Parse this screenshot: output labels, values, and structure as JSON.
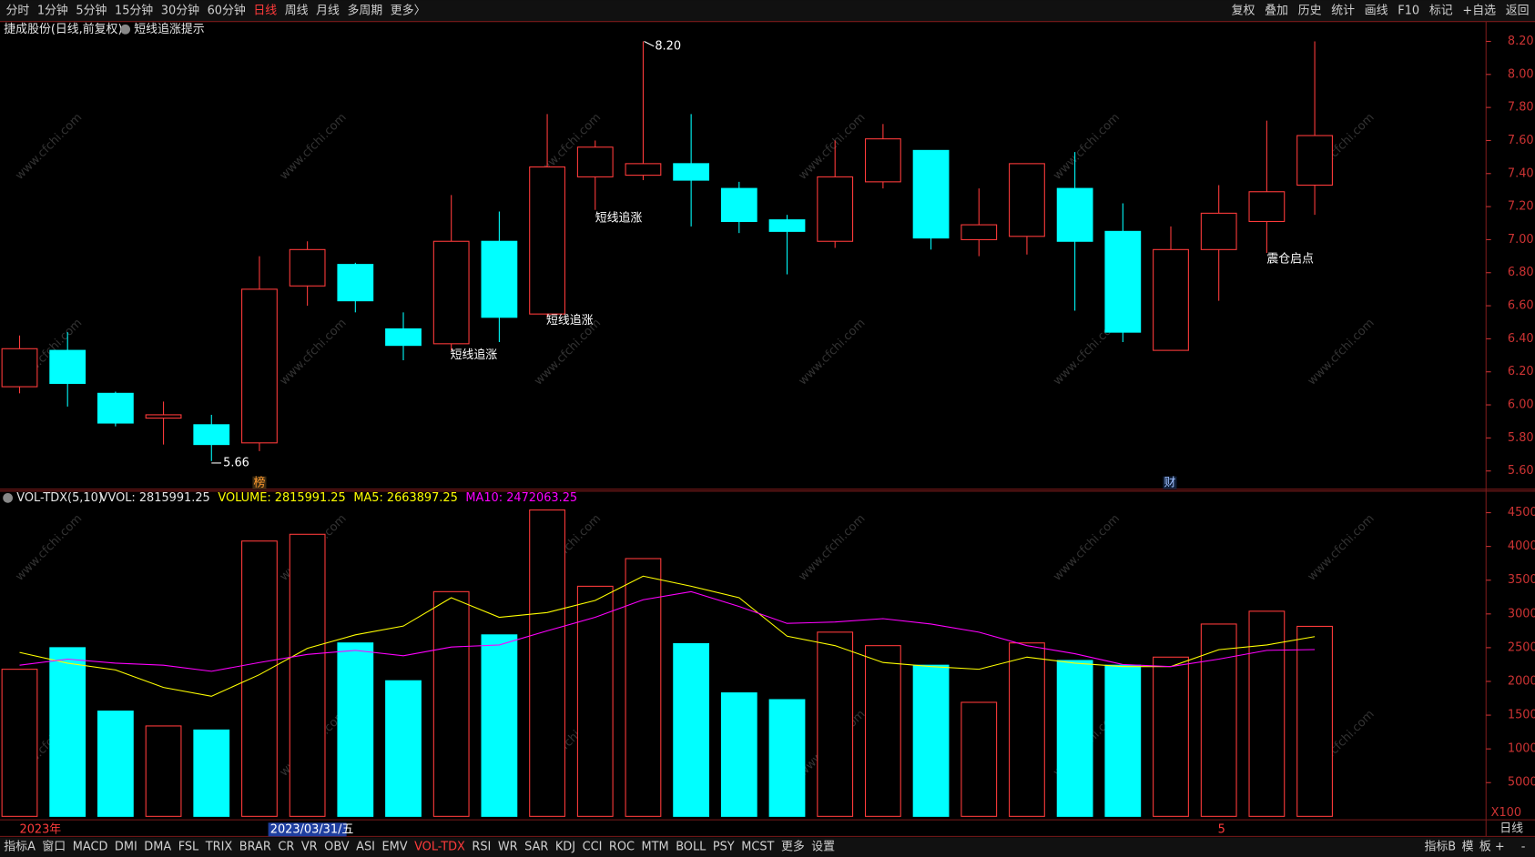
{
  "toolbar": {
    "periods": [
      "分时",
      "1分钟",
      "5分钟",
      "15分钟",
      "30分钟",
      "60分钟",
      "日线",
      "周线",
      "月线",
      "多周期",
      "更多〉"
    ],
    "active_period": 6,
    "tools": [
      "复权",
      "叠加",
      "历史",
      "统计",
      "画线",
      "F10",
      "标记",
      "+自选",
      "返回"
    ]
  },
  "indicator_tabs": {
    "left": [
      "指标A",
      "窗口",
      "MACD",
      "DMI",
      "DMA",
      "FSL",
      "TRIX",
      "BRAR",
      "CR",
      "VR",
      "OBV",
      "ASI",
      "EMV",
      "VOL-TDX",
      "RSI",
      "WR",
      "SAR",
      "KDJ",
      "CCI",
      "ROC",
      "MTM",
      "BOLL",
      "PSY",
      "MCST",
      "更多",
      "设置"
    ],
    "active": 13,
    "right": [
      "指标B",
      "模",
      "板"
    ],
    "period": "日线",
    "zoom": [
      "+",
      "-"
    ]
  },
  "xaxis_labels": [
    "2023年",
    "2023/03/31/五",
    "5"
  ],
  "markers": [
    "榜",
    "财"
  ],
  "watermark": "www.cfchi.com",
  "chart_data": [
    {
      "type": "candlestick",
      "title": "捷成股份(日线,前复权)",
      "subtitle": "短线追涨提示",
      "up_color": "#ff3b3b",
      "down_color": "#00ffff",
      "open": [
        6.11,
        6.33,
        6.07,
        5.92,
        5.88,
        5.77,
        6.72,
        6.85,
        6.46,
        6.37,
        6.99,
        6.55,
        7.38,
        7.39,
        7.46,
        7.31,
        7.12,
        6.99,
        7.35,
        7.54,
        7.0,
        7.02,
        7.31,
        7.05,
        6.33,
        6.94,
        7.11,
        7.33
      ],
      "high": [
        6.42,
        6.44,
        6.08,
        6.02,
        5.94,
        6.9,
        6.99,
        6.86,
        6.56,
        7.27,
        7.17,
        7.76,
        7.6,
        8.2,
        7.76,
        7.35,
        7.15,
        7.6,
        7.7,
        7.54,
        7.31,
        7.46,
        7.53,
        7.22,
        7.08,
        7.33,
        7.72,
        8.2
      ],
      "low": [
        6.07,
        5.99,
        5.87,
        5.76,
        5.66,
        5.72,
        6.6,
        6.56,
        6.27,
        6.33,
        6.38,
        6.53,
        7.18,
        7.36,
        7.08,
        7.04,
        6.79,
        6.95,
        7.31,
        6.94,
        6.9,
        6.91,
        6.57,
        6.38,
        6.33,
        6.63,
        6.92,
        7.15
      ],
      "close": [
        6.34,
        6.13,
        5.89,
        5.94,
        5.76,
        6.7,
        6.94,
        6.63,
        6.36,
        6.99,
        6.53,
        7.44,
        7.56,
        7.46,
        7.36,
        7.11,
        7.05,
        7.38,
        7.61,
        7.01,
        7.09,
        7.46,
        6.99,
        6.44,
        6.94,
        7.16,
        7.29,
        7.63
      ],
      "annotations": [
        "短线追涨",
        "短线追涨",
        "短线追涨",
        "震仓启点",
        "5.66",
        "8.20"
      ],
      "ylim": [
        5.49,
        8.32
      ],
      "yticks": [
        {
          "value": 5.6,
          "label": "5.60"
        },
        {
          "value": 5.8,
          "label": "5.80"
        },
        {
          "value": 6.0,
          "label": "6.00"
        },
        {
          "value": 6.2,
          "label": "6.20"
        },
        {
          "value": 6.4,
          "label": "6.40"
        },
        {
          "value": 6.6,
          "label": "6.60"
        },
        {
          "value": 6.8,
          "label": "6.80"
        },
        {
          "value": 7.0,
          "label": "7.00"
        },
        {
          "value": 7.2,
          "label": "7.20"
        },
        {
          "value": 7.4,
          "label": "7.40"
        },
        {
          "value": 7.6,
          "label": "7.60"
        },
        {
          "value": 7.8,
          "label": "7.80"
        },
        {
          "value": 8.0,
          "label": "8.00"
        },
        {
          "value": 8.2,
          "label": "8.20"
        }
      ]
    },
    {
      "type": "bar",
      "title": "VOL-TDX(5,10)",
      "legend": [
        {
          "text": "VVOL: 2815991.25",
          "color": "#e6e6e6"
        },
        {
          "text": "VOLUME: 2815991.25",
          "color": "#ffff00"
        },
        {
          "text": "MA5: 2663897.25",
          "color": "#ffff00"
        },
        {
          "text": "MA10: 2472063.25",
          "color": "#ff00ff"
        }
      ],
      "unit_label": "X100",
      "values": [
        21800,
        25000,
        15600,
        13400,
        12800,
        40800,
        41800,
        25700,
        20100,
        33300,
        26900,
        45400,
        34100,
        38200,
        25600,
        18300,
        17300,
        27300,
        25300,
        22400,
        16900,
        25700,
        23100,
        22400,
        23600,
        28500,
        30400,
        28160
      ],
      "series": [
        {
          "name": "MA5",
          "color": "#ffff00",
          "values": [
            24300,
            22700,
            21700,
            19100,
            17800,
            21000,
            24900,
            26900,
            28200,
            32400,
            29500,
            30200,
            32000,
            35600,
            34100,
            32400,
            26700,
            25300,
            22800,
            22200,
            21800,
            23600,
            22700,
            22200,
            22200,
            24700,
            25400,
            26640
          ]
        },
        {
          "name": "MA10",
          "color": "#ff00ff",
          "values": [
            22400,
            23300,
            22700,
            22400,
            21500,
            22800,
            24000,
            24600,
            23800,
            25100,
            25400,
            27500,
            29500,
            32100,
            33300,
            31100,
            28600,
            28800,
            29300,
            28500,
            27300,
            25300,
            24100,
            22500,
            22200,
            23300,
            24600,
            24720
          ]
        }
      ],
      "ylim": [
        0,
        48200
      ],
      "yticks": [
        5000,
        10000,
        15000,
        20000,
        25000,
        30000,
        35000,
        40000,
        45000
      ]
    }
  ]
}
